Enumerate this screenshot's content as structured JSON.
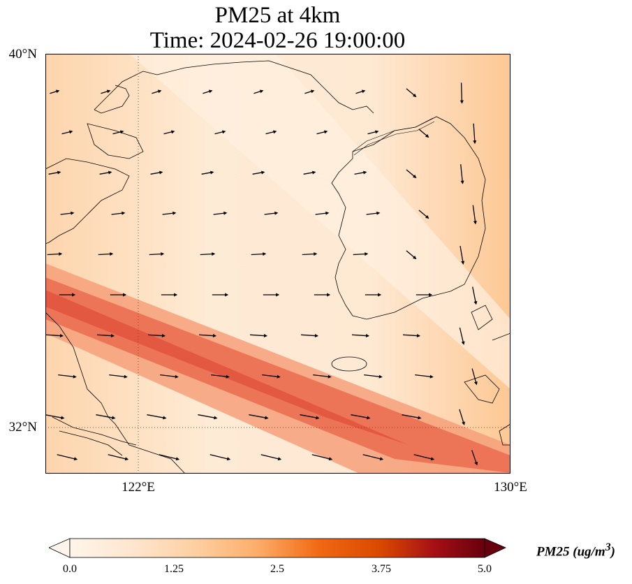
{
  "title": {
    "line1": "PM25 at 4km",
    "line2": "Time: 2024-02-26 19:00:00"
  },
  "axes": {
    "lat_labels": [
      "40°N",
      "32°N"
    ],
    "lon_labels": [
      "122°E",
      "130°E"
    ]
  },
  "extent": {
    "lon_min": 120,
    "lon_max": 130,
    "lat_min": 31,
    "lat_max": 40
  },
  "colorbar": {
    "ticks": [
      "0.0",
      "1.25",
      "2.5",
      "3.75",
      "5.0"
    ],
    "label_main": "PM25 (ug/m",
    "label_sup": "3",
    "label_end": ")",
    "min": 0,
    "max": 5,
    "extend": "both",
    "colors": [
      "#fff5eb",
      "#fee6ce",
      "#fdd0a2",
      "#fdae6b",
      "#f16913",
      "#d94801",
      "#a50f15",
      "#67000d"
    ]
  },
  "field": {
    "background_color": "#fde7cf",
    "plume_band_peak_value": 2.8
  },
  "wind_vectors_count": 90
}
